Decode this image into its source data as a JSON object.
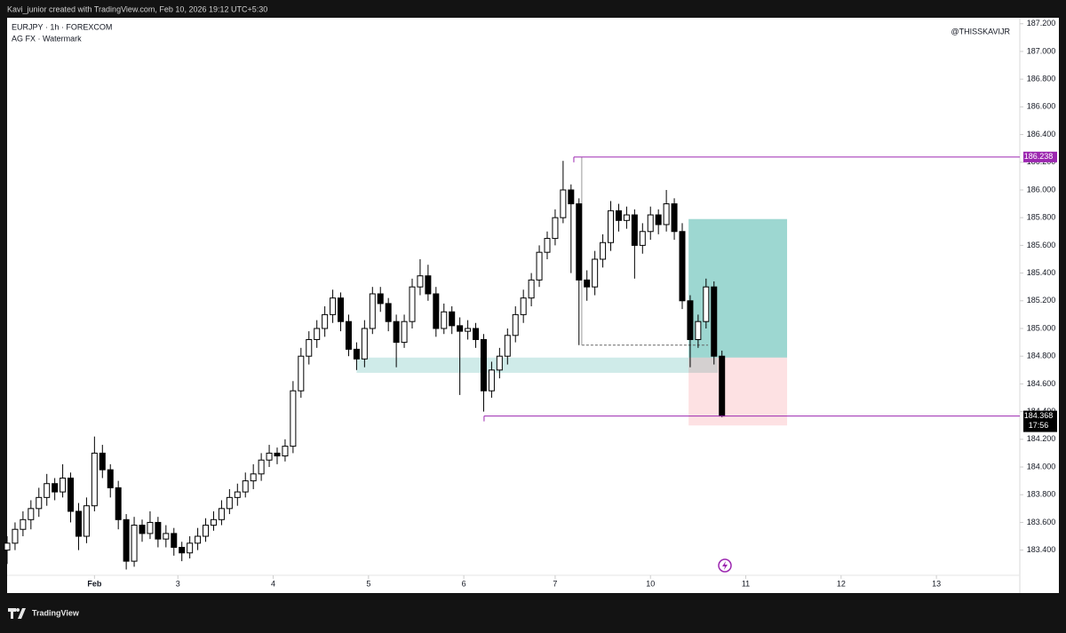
{
  "header": {
    "text": "Kavi_junior created with TradingView.com, Feb 10, 2026 19:12 UTC+5:30"
  },
  "footer": {
    "brand": "TradingView"
  },
  "chart_data": {
    "type": "candlestick",
    "title": "EURJPY · 1h · FOREXCOM",
    "subtitle": "AG FX · Watermark",
    "watermark": "@THISSKAVIJR",
    "countdown": "17:56",
    "up_color": "#ffffff",
    "down_color": "#000000",
    "wick_color": "#000000",
    "ylim": [
      183.09,
      187.256
    ],
    "yticks": [
      {
        "value": 183.4,
        "label": "183.400"
      },
      {
        "value": 183.6,
        "label": "183.600"
      },
      {
        "value": 183.8,
        "label": "183.800"
      },
      {
        "value": 184.0,
        "label": "184.000"
      },
      {
        "value": 184.2,
        "label": "184.200"
      },
      {
        "value": 184.4,
        "label": "184.400"
      },
      {
        "value": 184.6,
        "label": "184.600"
      },
      {
        "value": 184.8,
        "label": "184.800"
      },
      {
        "value": 185.0,
        "label": "185.000"
      },
      {
        "value": 185.2,
        "label": "185.200"
      },
      {
        "value": 185.4,
        "label": "185.400"
      },
      {
        "value": 185.6,
        "label": "185.600"
      },
      {
        "value": 185.8,
        "label": "185.800"
      },
      {
        "value": 186.0,
        "label": "186.000"
      },
      {
        "value": 186.2,
        "label": "186.200"
      },
      {
        "value": 186.4,
        "label": "186.400"
      },
      {
        "value": 186.6,
        "label": "186.600"
      },
      {
        "value": 186.8,
        "label": "186.800"
      },
      {
        "value": 187.0,
        "label": "187.000"
      },
      {
        "value": 187.2,
        "label": "187.200"
      }
    ],
    "xlim": [
      0,
      255
    ],
    "xticks": [
      {
        "value": 22,
        "label": "Feb"
      },
      {
        "value": 43,
        "label": "3"
      },
      {
        "value": 67,
        "label": "4"
      },
      {
        "value": 91,
        "label": "5"
      },
      {
        "value": 115,
        "label": "6"
      },
      {
        "value": 138,
        "label": "7"
      },
      {
        "value": 162,
        "label": "10"
      },
      {
        "value": 186,
        "label": "11"
      },
      {
        "value": 210,
        "label": "12"
      },
      {
        "value": 234,
        "label": "13"
      }
    ],
    "x": [
      0,
      2,
      4,
      6,
      8,
      10,
      12,
      14,
      16,
      18,
      20,
      22,
      24,
      26,
      28,
      30,
      32,
      34,
      36,
      38,
      40,
      42,
      44,
      46,
      48,
      50,
      52,
      54,
      56,
      58,
      60,
      62,
      64,
      66,
      68,
      70,
      72,
      74,
      76,
      78,
      80,
      82,
      84,
      86,
      88,
      90,
      92,
      94,
      96,
      98,
      100,
      102,
      104,
      106,
      108,
      110,
      112,
      114,
      116,
      118,
      120,
      122,
      124,
      126,
      128,
      130,
      132,
      134,
      136,
      138,
      140,
      142,
      144,
      146,
      148,
      150,
      152,
      154,
      156,
      158,
      160,
      162,
      164,
      166,
      168,
      170,
      172,
      174,
      176,
      178,
      180
    ],
    "ohlc": [
      [
        183.4,
        183.5,
        183.3,
        183.45
      ],
      [
        183.45,
        183.6,
        183.4,
        183.55
      ],
      [
        183.55,
        183.68,
        183.5,
        183.62
      ],
      [
        183.62,
        183.76,
        183.55,
        183.7
      ],
      [
        183.7,
        183.85,
        183.64,
        183.78
      ],
      [
        183.78,
        183.95,
        183.72,
        183.88
      ],
      [
        183.88,
        183.92,
        183.76,
        183.82
      ],
      [
        183.82,
        184.02,
        183.78,
        183.92
      ],
      [
        183.92,
        183.96,
        183.6,
        183.68
      ],
      [
        183.68,
        183.74,
        183.4,
        183.5
      ],
      [
        183.5,
        183.78,
        183.45,
        183.72
      ],
      [
        183.72,
        184.22,
        183.68,
        184.1
      ],
      [
        184.1,
        184.16,
        183.92,
        183.98
      ],
      [
        183.98,
        184.02,
        183.78,
        183.85
      ],
      [
        183.85,
        183.9,
        183.55,
        183.62
      ],
      [
        183.62,
        183.66,
        183.26,
        183.32
      ],
      [
        183.32,
        183.64,
        183.28,
        183.58
      ],
      [
        183.58,
        183.62,
        183.46,
        183.52
      ],
      [
        183.52,
        183.68,
        183.48,
        183.6
      ],
      [
        183.6,
        183.64,
        183.42,
        183.48
      ],
      [
        183.48,
        183.58,
        183.42,
        183.52
      ],
      [
        183.52,
        183.56,
        183.36,
        183.42
      ],
      [
        183.42,
        183.46,
        183.32,
        183.38
      ],
      [
        183.38,
        183.5,
        183.34,
        183.45
      ],
      [
        183.45,
        183.56,
        183.4,
        183.5
      ],
      [
        183.5,
        183.63,
        183.46,
        183.58
      ],
      [
        183.58,
        183.68,
        183.54,
        183.62
      ],
      [
        183.62,
        183.76,
        183.58,
        183.7
      ],
      [
        183.7,
        183.84,
        183.66,
        183.78
      ],
      [
        183.78,
        183.88,
        183.72,
        183.82
      ],
      [
        183.82,
        183.96,
        183.78,
        183.9
      ],
      [
        183.9,
        184.02,
        183.84,
        183.95
      ],
      [
        183.95,
        184.1,
        183.9,
        184.05
      ],
      [
        184.05,
        184.16,
        184.0,
        184.1
      ],
      [
        184.1,
        184.14,
        184.02,
        184.08
      ],
      [
        184.08,
        184.2,
        184.04,
        184.15
      ],
      [
        184.15,
        184.62,
        184.1,
        184.55
      ],
      [
        184.55,
        184.86,
        184.5,
        184.8
      ],
      [
        184.8,
        184.98,
        184.74,
        184.92
      ],
      [
        184.92,
        185.06,
        184.86,
        185.0
      ],
      [
        185.0,
        185.16,
        184.94,
        185.1
      ],
      [
        185.1,
        185.28,
        185.04,
        185.22
      ],
      [
        185.22,
        185.26,
        184.98,
        185.05
      ],
      [
        185.05,
        185.1,
        184.8,
        184.85
      ],
      [
        184.85,
        184.9,
        184.7,
        184.78
      ],
      [
        184.78,
        185.06,
        184.72,
        185.0
      ],
      [
        185.0,
        185.3,
        184.96,
        185.25
      ],
      [
        185.25,
        185.3,
        185.12,
        185.18
      ],
      [
        185.18,
        185.22,
        184.98,
        185.05
      ],
      [
        185.05,
        185.1,
        184.72,
        184.9
      ],
      [
        184.9,
        185.1,
        184.86,
        185.05
      ],
      [
        185.05,
        185.36,
        185.0,
        185.3
      ],
      [
        185.3,
        185.5,
        185.24,
        185.38
      ],
      [
        185.38,
        185.46,
        185.2,
        185.25
      ],
      [
        185.25,
        185.3,
        184.94,
        185.0
      ],
      [
        185.0,
        185.18,
        184.96,
        185.12
      ],
      [
        185.12,
        185.16,
        184.96,
        185.02
      ],
      [
        185.02,
        185.08,
        184.52,
        184.98
      ],
      [
        184.98,
        185.06,
        184.92,
        185.0
      ],
      [
        185.0,
        185.04,
        184.86,
        184.92
      ],
      [
        184.92,
        184.96,
        184.4,
        184.55
      ],
      [
        184.55,
        184.76,
        184.5,
        184.7
      ],
      [
        184.7,
        184.86,
        184.64,
        184.8
      ],
      [
        184.8,
        185.0,
        184.74,
        184.95
      ],
      [
        184.95,
        185.16,
        184.9,
        185.1
      ],
      [
        185.1,
        185.28,
        185.04,
        185.22
      ],
      [
        185.22,
        185.4,
        185.16,
        185.35
      ],
      [
        185.35,
        185.6,
        185.3,
        185.55
      ],
      [
        185.55,
        185.7,
        185.5,
        185.65
      ],
      [
        185.65,
        185.86,
        185.6,
        185.8
      ],
      [
        185.8,
        186.21,
        185.76,
        186.0
      ],
      [
        186.0,
        186.04,
        185.4,
        185.9
      ],
      [
        185.9,
        185.94,
        184.88,
        185.35
      ],
      [
        185.35,
        185.42,
        185.2,
        185.3
      ],
      [
        185.3,
        185.56,
        185.24,
        185.5
      ],
      [
        185.5,
        185.68,
        185.44,
        185.62
      ],
      [
        185.62,
        185.92,
        185.56,
        185.85
      ],
      [
        185.85,
        185.9,
        185.7,
        185.78
      ],
      [
        185.78,
        185.88,
        185.72,
        185.82
      ],
      [
        185.82,
        185.86,
        185.36,
        185.6
      ],
      [
        185.6,
        185.76,
        185.54,
        185.7
      ],
      [
        185.7,
        185.88,
        185.64,
        185.82
      ],
      [
        185.82,
        185.86,
        185.68,
        185.75
      ],
      [
        185.75,
        186.0,
        185.7,
        185.9
      ],
      [
        185.9,
        185.94,
        185.64,
        185.7
      ],
      [
        185.7,
        185.76,
        185.14,
        185.2
      ],
      [
        185.2,
        185.24,
        184.72,
        184.92
      ],
      [
        184.92,
        185.1,
        184.86,
        185.05
      ],
      [
        185.05,
        185.36,
        185.0,
        185.3
      ],
      [
        185.3,
        185.34,
        184.74,
        184.8
      ],
      [
        184.8,
        184.84,
        184.36,
        184.368
      ]
    ],
    "zones": [
      {
        "x": [
          88,
          179
        ],
        "ylim": [
          184.68,
          184.79
        ],
        "color": "rgba(38,166,154,0.22)"
      },
      {
        "x": [
          171.6,
          196.4
        ],
        "ylim": [
          184.79,
          185.79
        ],
        "color": "rgba(38,166,154,0.45)"
      },
      {
        "x": [
          171.6,
          196.4
        ],
        "ylim": [
          184.3,
          184.79
        ],
        "color": "rgba(242,54,69,0.15)"
      }
    ],
    "levels": [
      {
        "value": 186.238,
        "x": 142.7,
        "color": "#9c27b0",
        "label_color": "#9c27b0"
      },
      {
        "value": 184.368,
        "x": 120.1,
        "color": "#9c27b0",
        "label_color": "#000000"
      }
    ],
    "dashed": {
      "value": 184.88,
      "x": [
        144.7,
        176.5
      ],
      "color": "#666666"
    }
  }
}
